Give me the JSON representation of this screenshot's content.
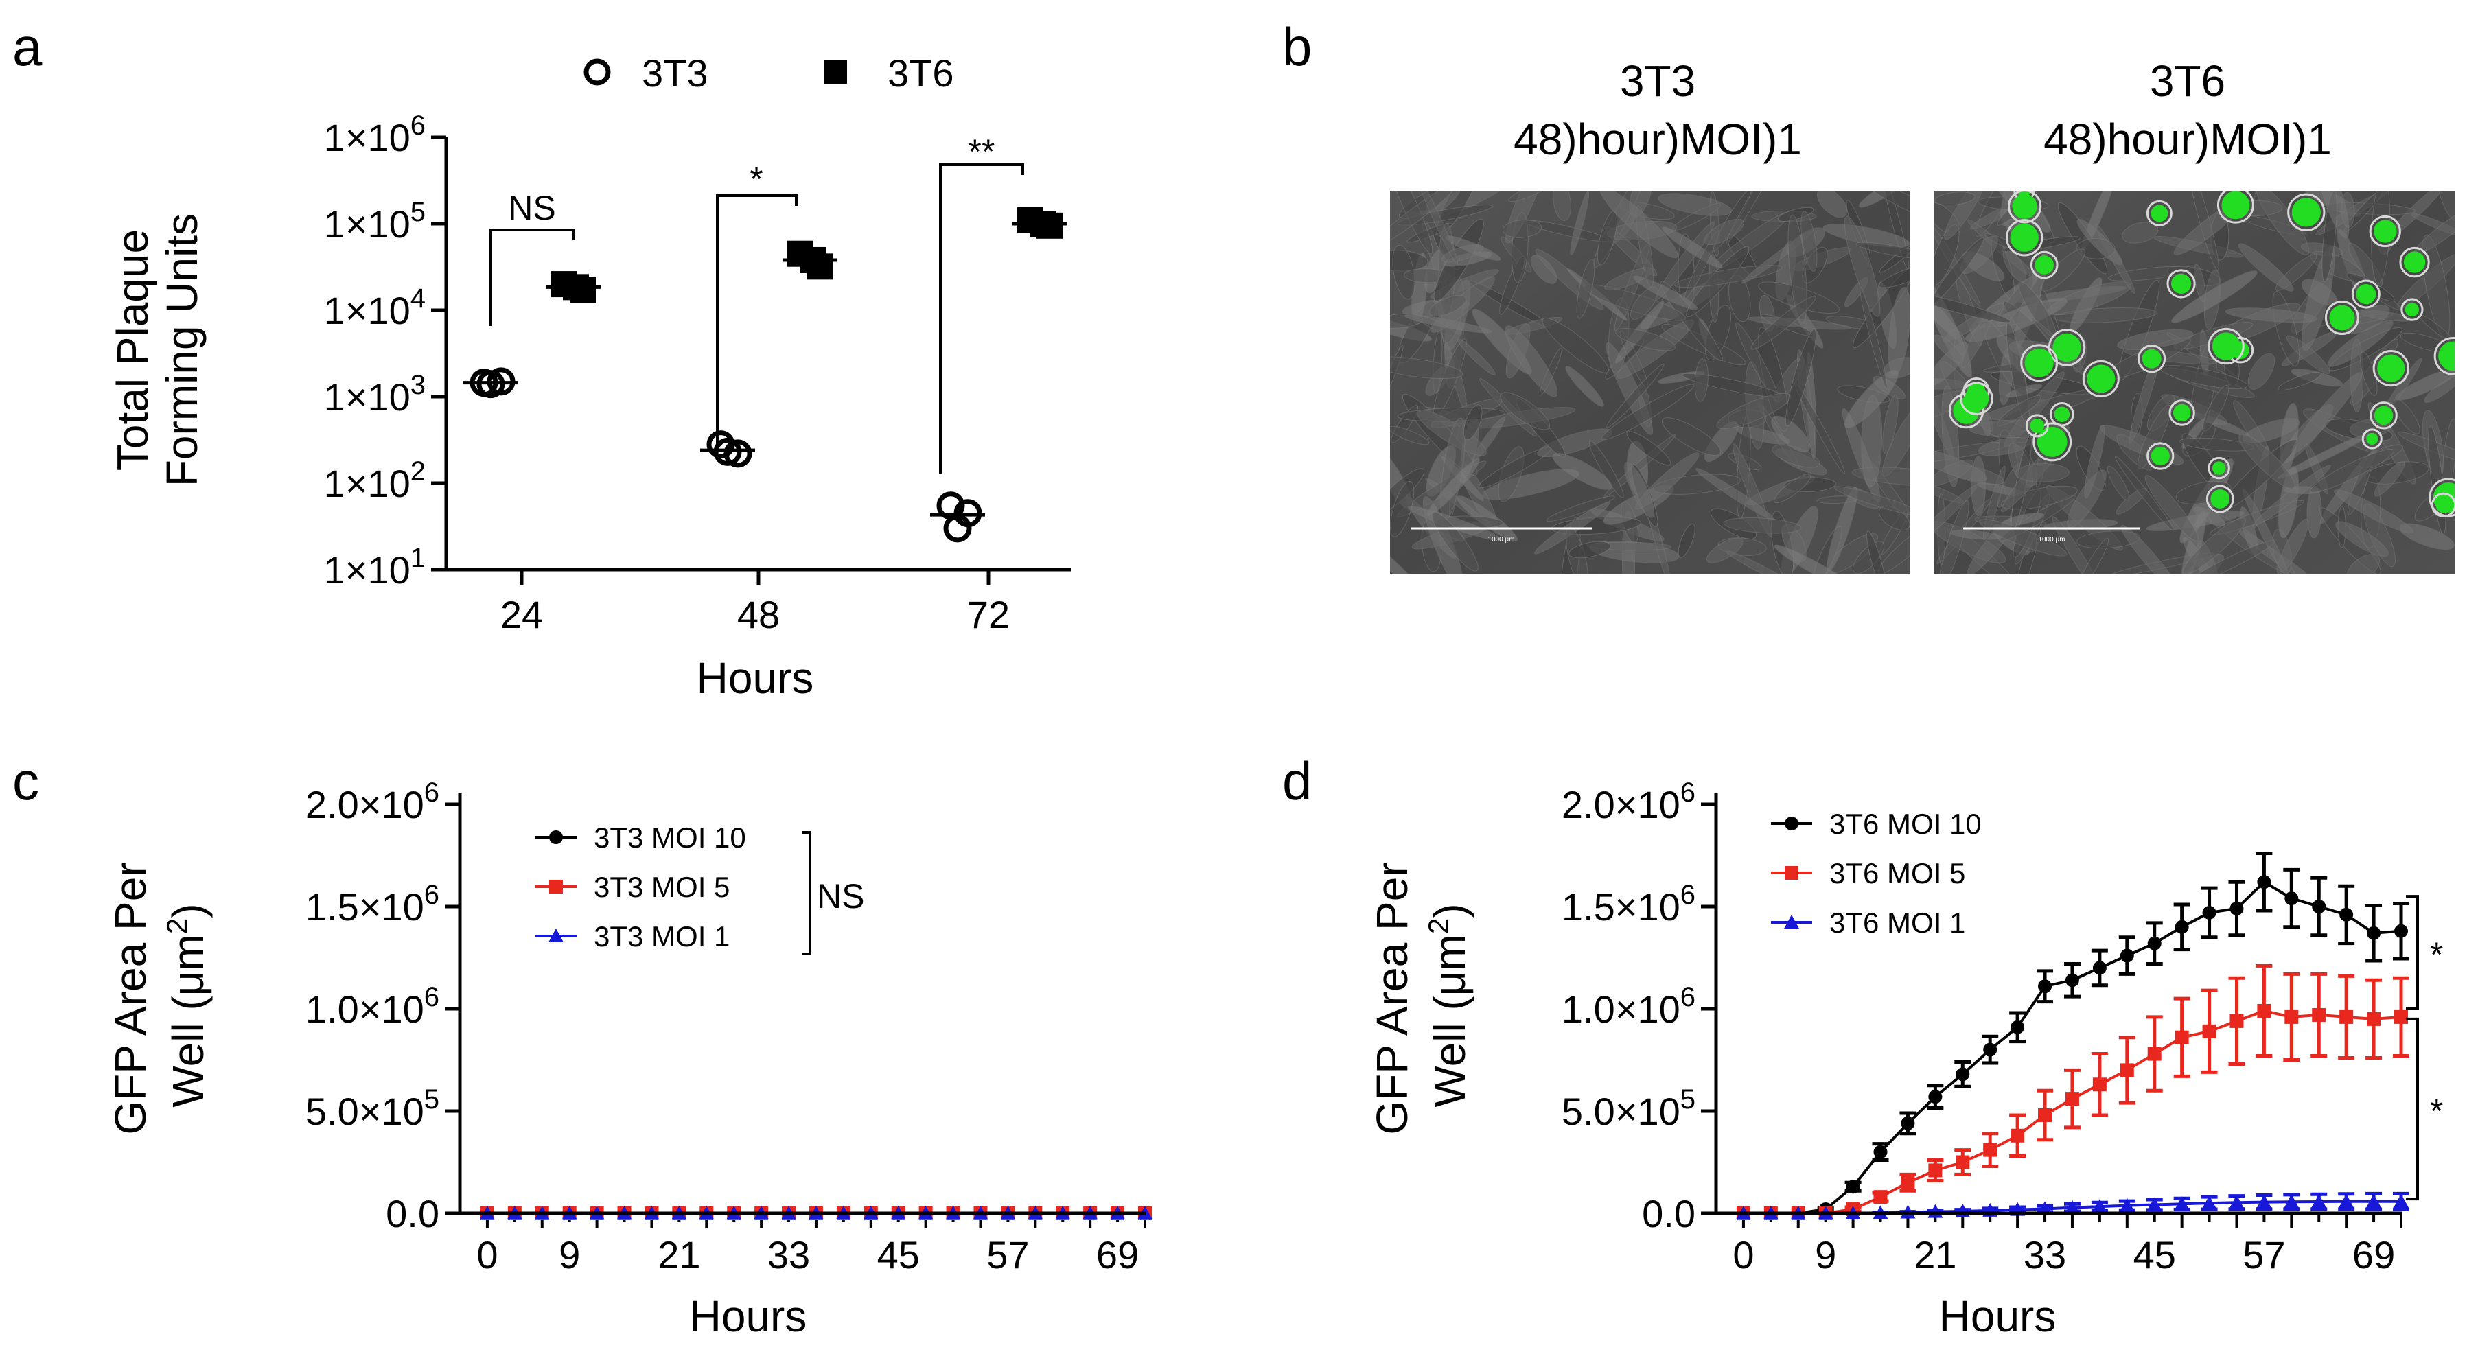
{
  "panels": {
    "a": {
      "letter": "a",
      "chart_data": {
        "type": "scatter",
        "yscale": "log",
        "ylim": [
          10,
          1000000
        ],
        "yticks": [
          {
            "value": 10,
            "base": "1×10",
            "exp": "1"
          },
          {
            "value": 100,
            "base": "1×10",
            "exp": "2"
          },
          {
            "value": 1000,
            "base": "1×10",
            "exp": "3"
          },
          {
            "value": 10000,
            "base": "1×10",
            "exp": "4"
          },
          {
            "value": 100000,
            "base": "1×10",
            "exp": "5"
          },
          {
            "value": 1000000,
            "base": "1×10",
            "exp": "6"
          }
        ],
        "categories": [
          "24",
          "48",
          "72"
        ],
        "xlabel": "Hours",
        "ylabel_line1": "Total Plaque",
        "ylabel_line2": "Forming Units",
        "series": [
          {
            "name": "3T3",
            "marker": "open-circle",
            "points": [
              [
                1450,
                1500,
                1400
              ],
              [
                280,
                220,
                230
              ],
              [
                55,
                45,
                30
              ]
            ],
            "means": [
              1450,
              240,
              43
            ]
          },
          {
            "name": "3T6",
            "marker": "filled-square",
            "points": [
              [
                20000,
                17000,
                18500
              ],
              [
                45000,
                32000,
                38000
              ],
              [
                110000,
                95000,
                100000
              ]
            ],
            "means": [
              18500,
              38000,
              100000
            ]
          }
        ],
        "significance": [
          {
            "category": "24",
            "label": "NS"
          },
          {
            "category": "48",
            "label": "*"
          },
          {
            "category": "72",
            "label": "**"
          }
        ]
      }
    },
    "b": {
      "letter": "b",
      "images": [
        {
          "title_line1": "3T3",
          "title_line2": "48)hour)MOI)1",
          "scalebar_label": "1000 µm"
        },
        {
          "title_line1": "3T6",
          "title_line2": "48)hour)MOI)1",
          "scalebar_label": "1000 µm"
        }
      ],
      "colors": {
        "gfp": "#22dd22",
        "background": "#4a4a4a"
      }
    },
    "c": {
      "letter": "c",
      "chart_data": {
        "type": "line",
        "xlabel": "Hours",
        "ylabel_line1": "GFP Area Per",
        "ylabel_line2": "Well (μm",
        "ylabel_sup": "2",
        "ylabel_end": ")",
        "xlim": [
          -3,
          72
        ],
        "ylim": [
          0,
          2000000
        ],
        "xticks": [
          "0",
          "9",
          "21",
          "33",
          "45",
          "57",
          "69"
        ],
        "yticks": [
          {
            "value": 0,
            "text": "0.0",
            "exp": ""
          },
          {
            "value": 500000,
            "text": "5.0×10",
            "exp": "5"
          },
          {
            "value": 1000000,
            "text": "1.0×10",
            "exp": "6"
          },
          {
            "value": 1500000,
            "text": "1.5×10",
            "exp": "6"
          },
          {
            "value": 2000000,
            "text": "2.0×10",
            "exp": "6"
          }
        ],
        "x": [
          0,
          3,
          6,
          9,
          12,
          15,
          18,
          21,
          24,
          27,
          30,
          33,
          36,
          39,
          42,
          45,
          48,
          51,
          54,
          57,
          60,
          63,
          66,
          69,
          72
        ],
        "series": [
          {
            "name": "3T3 MOI 10",
            "color": "#000000",
            "marker": "circle",
            "values": [
              0,
              0,
              0,
              0,
              0,
              0,
              0,
              0,
              0,
              0,
              0,
              0,
              0,
              0,
              0,
              0,
              0,
              0,
              0,
              0,
              0,
              0,
              0,
              0,
              0
            ],
            "errors": [
              0,
              0,
              0,
              0,
              0,
              0,
              0,
              0,
              0,
              0,
              0,
              0,
              0,
              0,
              0,
              0,
              0,
              0,
              0,
              0,
              0,
              0,
              0,
              0,
              0
            ]
          },
          {
            "name": "3T3 MOI 5",
            "color": "#e8281e",
            "marker": "square",
            "values": [
              0,
              0,
              0,
              0,
              0,
              0,
              0,
              0,
              0,
              0,
              0,
              0,
              0,
              0,
              0,
              0,
              0,
              0,
              0,
              0,
              0,
              0,
              0,
              0,
              0
            ],
            "errors": [
              0,
              0,
              0,
              0,
              0,
              0,
              0,
              0,
              0,
              0,
              0,
              0,
              0,
              0,
              0,
              0,
              0,
              0,
              0,
              0,
              0,
              0,
              0,
              0,
              0
            ]
          },
          {
            "name": "3T3 MOI 1",
            "color": "#1818d8",
            "marker": "triangle",
            "values": [
              0,
              0,
              0,
              0,
              0,
              0,
              0,
              0,
              0,
              0,
              0,
              0,
              0,
              0,
              0,
              0,
              0,
              0,
              0,
              0,
              0,
              0,
              0,
              0,
              0
            ],
            "errors": [
              0,
              0,
              0,
              0,
              0,
              0,
              0,
              0,
              0,
              0,
              0,
              0,
              0,
              0,
              0,
              0,
              0,
              0,
              0,
              0,
              0,
              0,
              0,
              0,
              0
            ]
          }
        ],
        "significance_label": "NS"
      }
    },
    "d": {
      "letter": "d",
      "chart_data": {
        "type": "line",
        "xlabel": "Hours",
        "ylabel_line1": "GFP Area Per",
        "ylabel_line2": "Well (μm",
        "ylabel_sup": "2",
        "ylabel_end": ")",
        "xlim": [
          -3,
          72
        ],
        "ylim": [
          0,
          2000000
        ],
        "xticks": [
          "0",
          "9",
          "21",
          "33",
          "45",
          "57",
          "69"
        ],
        "yticks": [
          {
            "value": 0,
            "text": "0.0",
            "exp": ""
          },
          {
            "value": 500000,
            "text": "5.0×10",
            "exp": "5"
          },
          {
            "value": 1000000,
            "text": "1.0×10",
            "exp": "6"
          },
          {
            "value": 1500000,
            "text": "1.5×10",
            "exp": "6"
          },
          {
            "value": 2000000,
            "text": "2.0×10",
            "exp": "6"
          }
        ],
        "x": [
          0,
          3,
          6,
          9,
          12,
          15,
          18,
          21,
          24,
          27,
          30,
          33,
          36,
          39,
          42,
          45,
          48,
          51,
          54,
          57,
          60,
          63,
          66,
          69,
          72
        ],
        "series": [
          {
            "name": "3T6 MOI 10",
            "color": "#000000",
            "marker": "circle",
            "values": [
              0,
              0,
              0,
              20000,
              130000,
              300000,
              440000,
              570000,
              680000,
              800000,
              910000,
              1110000,
              1140000,
              1200000,
              1260000,
              1320000,
              1400000,
              1470000,
              1490000,
              1620000,
              1540000,
              1500000,
              1460000,
              1370000,
              1380000
            ],
            "errors": [
              0,
              0,
              0,
              5000,
              20000,
              40000,
              50000,
              55000,
              60000,
              65000,
              70000,
              75000,
              80000,
              85000,
              90000,
              100000,
              110000,
              120000,
              130000,
              140000,
              140000,
              140000,
              140000,
              135000,
              135000
            ]
          },
          {
            "name": "3T6 MOI 5",
            "color": "#e8281e",
            "marker": "square",
            "values": [
              0,
              0,
              0,
              0,
              20000,
              80000,
              150000,
              210000,
              250000,
              310000,
              380000,
              480000,
              560000,
              630000,
              700000,
              780000,
              860000,
              890000,
              940000,
              990000,
              960000,
              970000,
              960000,
              950000,
              960000
            ],
            "errors": [
              0,
              0,
              0,
              0,
              10000,
              20000,
              40000,
              50000,
              60000,
              80000,
              100000,
              120000,
              140000,
              150000,
              160000,
              180000,
              190000,
              200000,
              210000,
              220000,
              210000,
              200000,
              200000,
              190000,
              190000
            ]
          },
          {
            "name": "3T6 MOI 1",
            "color": "#1818d8",
            "marker": "triangle",
            "values": [
              0,
              0,
              0,
              0,
              0,
              2000,
              5000,
              8000,
              10000,
              14000,
              18000,
              22000,
              28000,
              33000,
              38000,
              42000,
              46000,
              50000,
              53000,
              55000,
              56000,
              57000,
              58000,
              58000,
              58000
            ],
            "errors": [
              0,
              0,
              0,
              0,
              0,
              2000,
              3000,
              5000,
              8000,
              10000,
              12000,
              15000,
              18000,
              20000,
              22000,
              25000,
              27000,
              30000,
              32000,
              34000,
              35000,
              36000,
              37000,
              38000,
              38000
            ]
          }
        ],
        "significance": [
          {
            "label": "*",
            "from": 1550000,
            "to": 1000000
          },
          {
            "label": "*",
            "from": 950000,
            "to": 70000
          }
        ]
      }
    }
  }
}
